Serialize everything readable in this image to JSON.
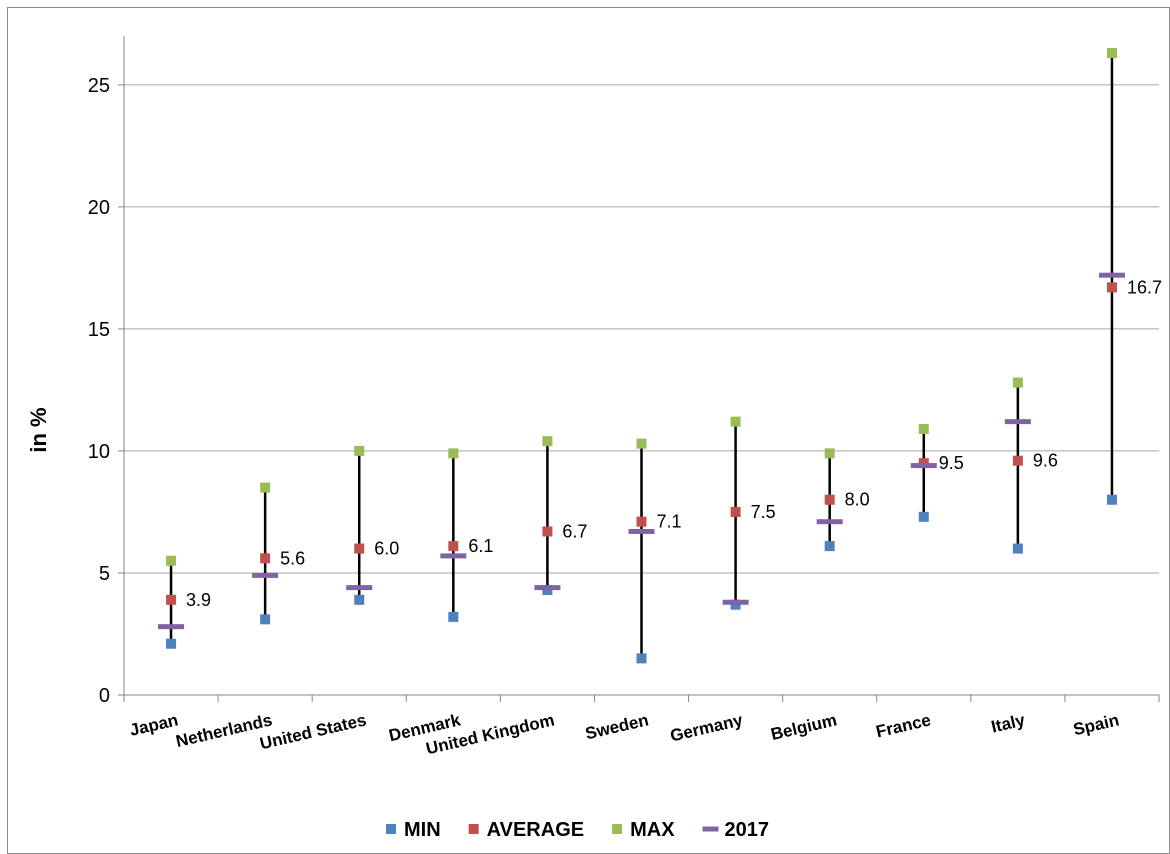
{
  "chart_data": {
    "type": "scatter",
    "title": "",
    "xlabel": "",
    "ylabel": "in %",
    "ylim": [
      0,
      27
    ],
    "yticks": [
      0,
      5,
      10,
      15,
      20,
      25
    ],
    "grid": true,
    "legend_position": "bottom",
    "categories": [
      "Japan",
      "Netherlands",
      "United States",
      "Denmark",
      "United Kingdom",
      "Sweden",
      "Germany",
      "Belgium",
      "France",
      "Italy",
      "Spain"
    ],
    "series": [
      {
        "name": "MIN",
        "color": "#4f81bd",
        "marker": "square",
        "values": [
          2.1,
          3.1,
          3.9,
          3.2,
          4.3,
          1.5,
          3.7,
          6.1,
          7.3,
          6.0,
          8.0
        ]
      },
      {
        "name": "AVERAGE",
        "color": "#c0504d",
        "marker": "square",
        "values": [
          3.9,
          5.6,
          6.0,
          6.1,
          6.7,
          7.1,
          7.5,
          8.0,
          9.5,
          9.6,
          16.7
        ]
      },
      {
        "name": "MAX",
        "color": "#9bbb59",
        "marker": "square",
        "values": [
          5.5,
          8.5,
          10.0,
          9.9,
          10.4,
          10.3,
          11.2,
          9.9,
          10.9,
          12.8,
          26.3
        ]
      },
      {
        "name": "2017",
        "color": "#8064a2",
        "marker": "dash",
        "values": [
          2.8,
          4.9,
          4.4,
          5.7,
          4.4,
          6.7,
          3.8,
          7.1,
          9.4,
          11.2,
          17.2
        ]
      }
    ],
    "data_labels": {
      "series": "AVERAGE",
      "labels": [
        "3.9",
        "5.6",
        "6.0",
        "6.1",
        "6.7",
        "7.1",
        "7.5",
        "8.0",
        "9.5",
        "9.6",
        "16.7"
      ]
    }
  }
}
